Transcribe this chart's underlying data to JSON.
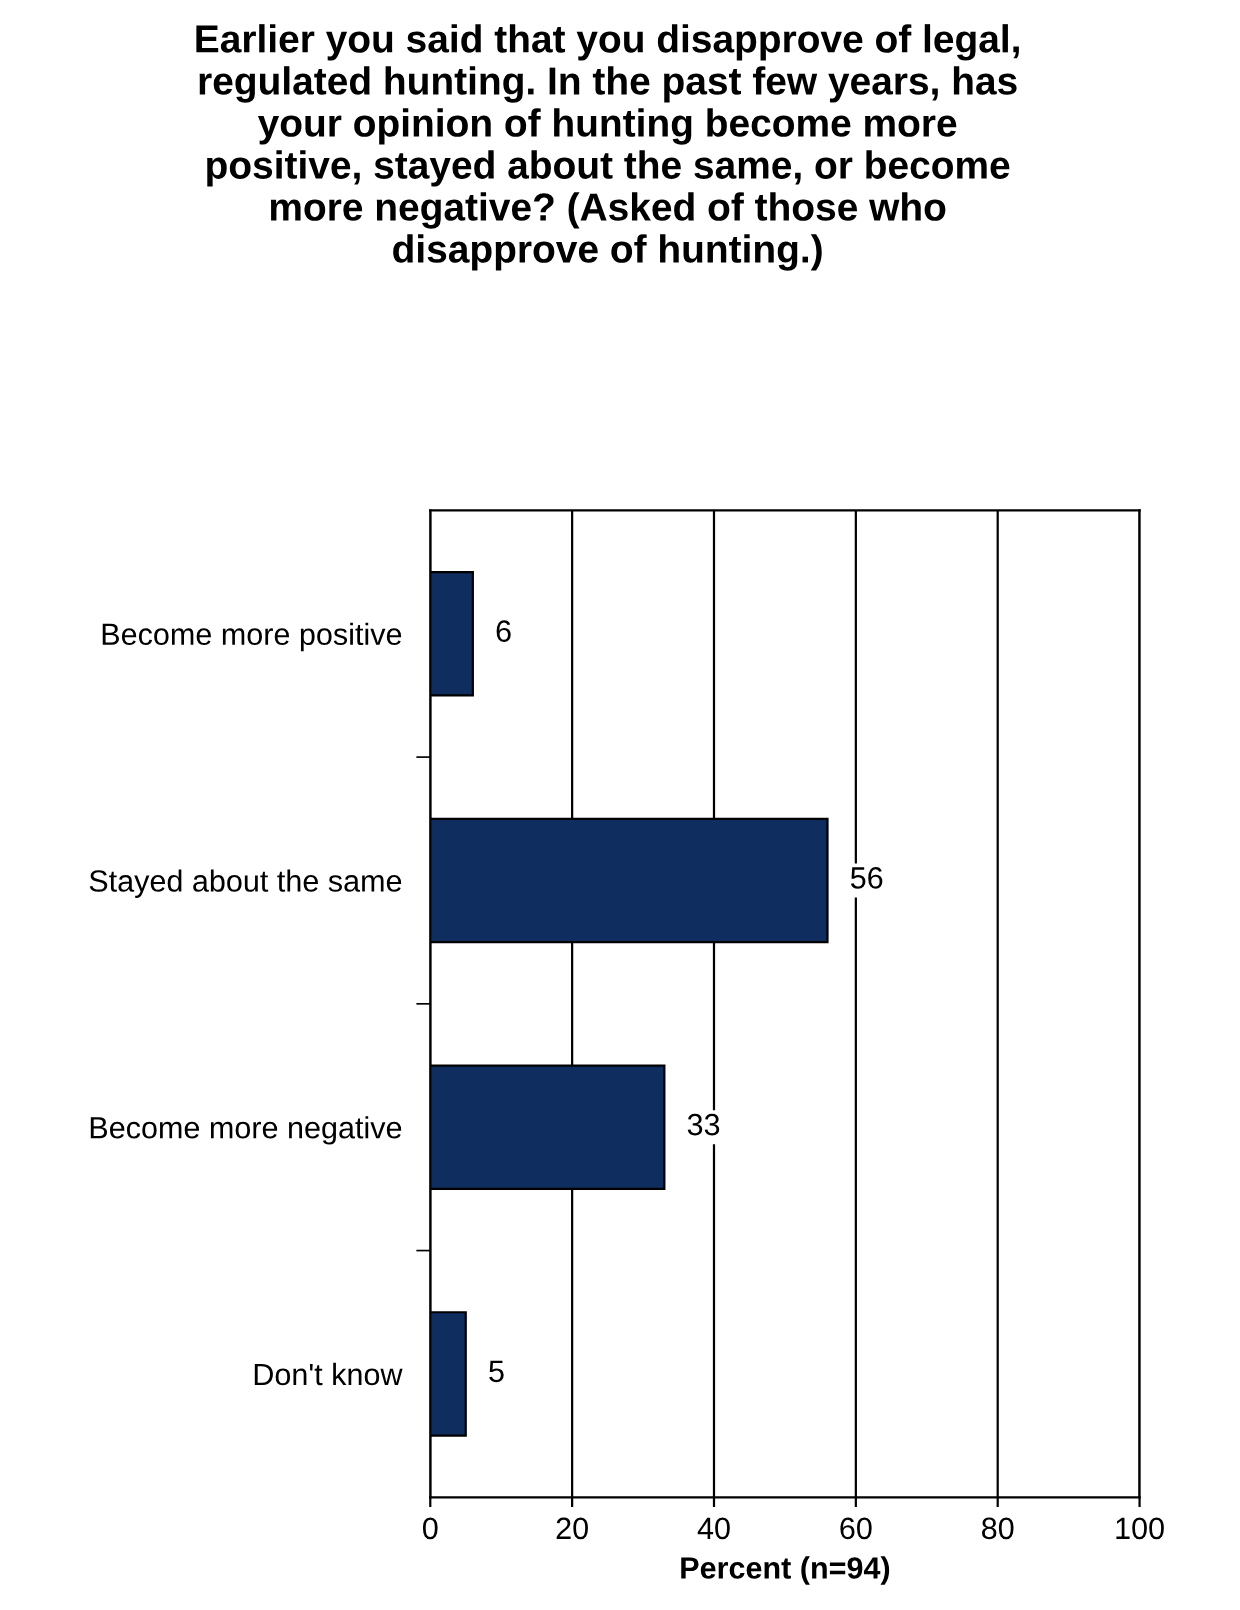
{
  "chart_data": {
    "type": "bar",
    "orientation": "horizontal",
    "title": "Earlier you said that you disapprove of legal, regulated hunting. In the past few years, has your opinion of hunting become more positive, stayed about the same, or become more negative? (Asked of those who disapprove of hunting.)",
    "xlabel": "Percent (n=94)",
    "categories": [
      "Become more positive",
      "Stayed about the same",
      "Become more negative",
      "Don't know"
    ],
    "values": [
      6,
      56,
      33,
      5
    ],
    "color": "#0f2d5f",
    "xlim": [
      0,
      100
    ],
    "xticks": [
      0,
      20,
      40,
      60,
      80,
      100
    ],
    "grid": "x",
    "data_labels": true
  }
}
